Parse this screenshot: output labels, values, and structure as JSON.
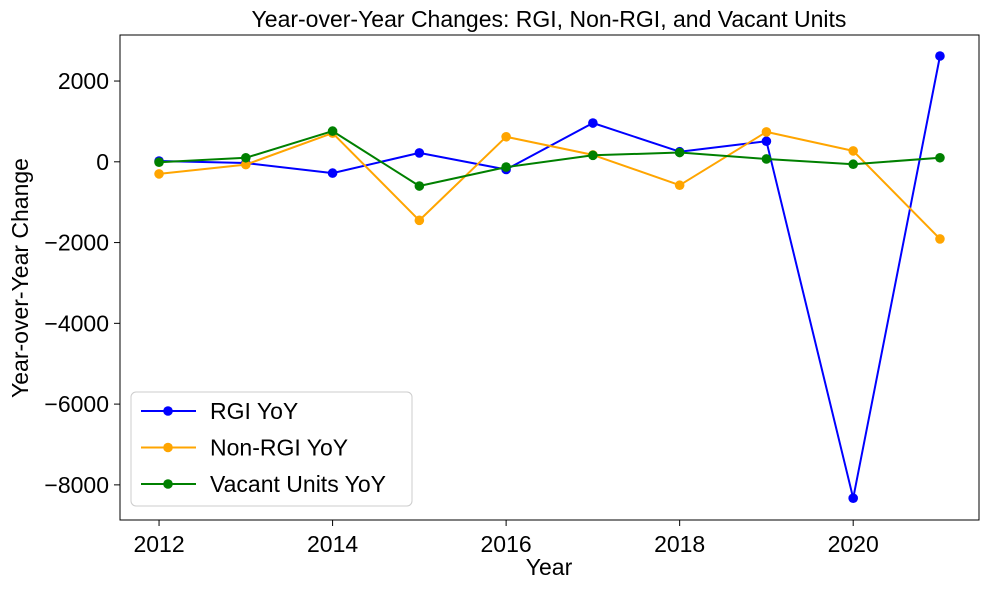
{
  "chart_data": {
    "type": "line",
    "title": "Year-over-Year Changes: RGI, Non-RGI, and Vacant Units",
    "xlabel": "Year",
    "ylabel": "Year-over-Year Change",
    "x": [
      2012,
      2013,
      2014,
      2015,
      2016,
      2017,
      2018,
      2019,
      2020,
      2021
    ],
    "xlim": [
      2011.55,
      2021.45
    ],
    "ylim": [
      -8870,
      3140
    ],
    "xticks": [
      2012,
      2014,
      2016,
      2018,
      2020
    ],
    "yticks": [
      -8000,
      -6000,
      -4000,
      -2000,
      0,
      2000
    ],
    "ytick_labels": [
      "−8000",
      "−6000",
      "−4000",
      "−2000",
      "0",
      "2000"
    ],
    "grid": false,
    "legend_position": "lower-left",
    "series": [
      {
        "name": "RGI YoY",
        "color": "#0000ff",
        "values": [
          20,
          -30,
          -280,
          220,
          -190,
          960,
          250,
          510,
          -8330,
          2620
        ]
      },
      {
        "name": "Non-RGI YoY",
        "color": "#ffa500",
        "values": [
          -300,
          -70,
          710,
          -1450,
          620,
          170,
          -580,
          740,
          270,
          -1910
        ]
      },
      {
        "name": "Vacant Units YoY",
        "color": "#008000",
        "values": [
          -10,
          100,
          760,
          -600,
          -130,
          160,
          230,
          70,
          -60,
          100
        ]
      }
    ]
  }
}
